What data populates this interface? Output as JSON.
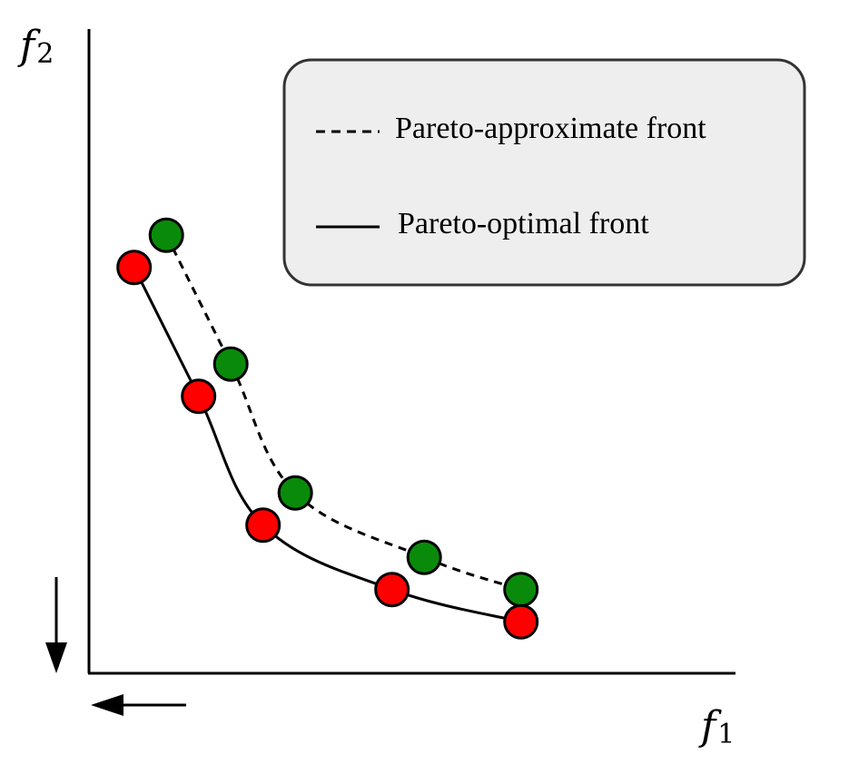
{
  "axes": {
    "x_label": "f",
    "x_subscript": "1",
    "y_label": "f",
    "y_subscript": "2"
  },
  "legend": {
    "approx_label": "Pareto-approximate front",
    "optimal_label": "Pareto-optimal front"
  },
  "colors": {
    "approx_points": "#0a8a0a",
    "optimal_points": "#ff0000",
    "legend_bg": "#eeeeee",
    "line": "#000000"
  },
  "chart_data": {
    "type": "scatter",
    "series": [
      {
        "name": "Pareto-approximate front",
        "style": "dashed",
        "points": [
          [
            1.2,
            6.8
          ],
          [
            2.2,
            4.8
          ],
          [
            3.2,
            2.8
          ],
          [
            5.2,
            1.8
          ],
          [
            6.7,
            1.3
          ]
        ]
      },
      {
        "name": "Pareto-optimal front",
        "style": "solid",
        "points": [
          [
            0.7,
            6.3
          ],
          [
            1.7,
            4.3
          ],
          [
            2.7,
            2.3
          ],
          [
            4.7,
            1.3
          ],
          [
            6.7,
            0.8
          ]
        ]
      }
    ],
    "xlim": [
      0,
      10
    ],
    "ylim": [
      0,
      10
    ]
  }
}
